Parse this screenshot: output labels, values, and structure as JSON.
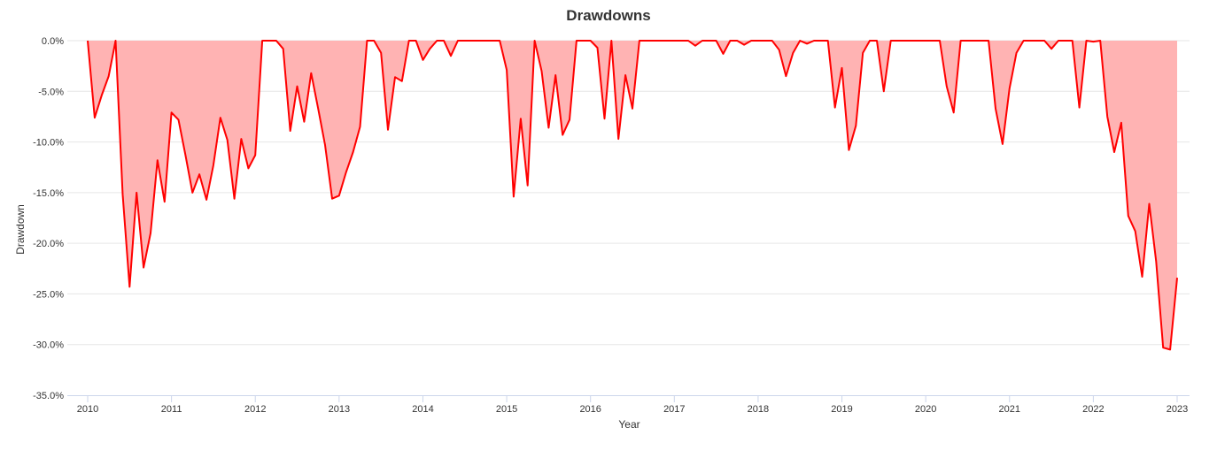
{
  "chart_data": {
    "type": "area",
    "title": "Drawdowns",
    "xlabel": "Year",
    "ylabel": "Drawdown",
    "xlim": [
      2010,
      2023
    ],
    "ylim": [
      -35,
      0
    ],
    "x_ticks": [
      2010,
      2011,
      2012,
      2013,
      2014,
      2015,
      2016,
      2017,
      2018,
      2019,
      2020,
      2021,
      2022,
      2023
    ],
    "x_tick_labels": [
      "2010",
      "2011",
      "2012",
      "2013",
      "2014",
      "2015",
      "2016",
      "2017",
      "2018",
      "2019",
      "2020",
      "2021",
      "2022",
      "2023"
    ],
    "y_ticks": [
      0,
      -5,
      -10,
      -15,
      -20,
      -25,
      -30,
      -35
    ],
    "y_tick_labels": [
      "0.0%",
      "-5.0%",
      "-10.0%",
      "-15.0%",
      "-20.0%",
      "-25.0%",
      "-30.0%",
      "-35.0%"
    ],
    "grid": true,
    "colors": {
      "line": "#ff0000",
      "fill": "#ffb3b3",
      "grid": "#e6e6e6",
      "axis": "#ccd6eb"
    },
    "series": [
      {
        "x": [
          2010.0,
          2010.083,
          2010.167,
          2010.25,
          2010.333,
          2010.417,
          2010.5,
          2010.583,
          2010.667,
          2010.75,
          2010.833,
          2010.917,
          2011.0,
          2011.083,
          2011.167,
          2011.25,
          2011.333,
          2011.417,
          2011.5,
          2011.583,
          2011.667,
          2011.75,
          2011.833,
          2011.917,
          2012.0,
          2012.083,
          2012.167,
          2012.25,
          2012.333,
          2012.417,
          2012.5,
          2012.583,
          2012.667,
          2012.75,
          2012.833,
          2012.917,
          2013.0,
          2013.083,
          2013.167,
          2013.25,
          2013.333,
          2013.417,
          2013.5,
          2013.583,
          2013.667,
          2013.75,
          2013.833,
          2013.917,
          2014.0,
          2014.083,
          2014.167,
          2014.25,
          2014.333,
          2014.417,
          2014.5,
          2014.583,
          2014.667,
          2014.75,
          2014.833,
          2014.917,
          2015.0,
          2015.083,
          2015.167,
          2015.25,
          2015.333,
          2015.417,
          2015.5,
          2015.583,
          2015.667,
          2015.75,
          2015.833,
          2015.917,
          2016.0,
          2016.083,
          2016.167,
          2016.25,
          2016.333,
          2016.417,
          2016.5,
          2016.583,
          2016.667,
          2016.75,
          2016.833,
          2016.917,
          2017.0,
          2017.083,
          2017.167,
          2017.25,
          2017.333,
          2017.417,
          2017.5,
          2017.583,
          2017.667,
          2017.75,
          2017.833,
          2017.917,
          2018.0,
          2018.083,
          2018.167,
          2018.25,
          2018.333,
          2018.417,
          2018.5,
          2018.583,
          2018.667,
          2018.75,
          2018.833,
          2018.917,
          2019.0,
          2019.083,
          2019.167,
          2019.25,
          2019.333,
          2019.417,
          2019.5,
          2019.583,
          2019.667,
          2019.75,
          2019.833,
          2019.917,
          2020.0,
          2020.083,
          2020.167,
          2020.25,
          2020.333,
          2020.417,
          2020.5,
          2020.583,
          2020.667,
          2020.75,
          2020.833,
          2020.917,
          2021.0,
          2021.083,
          2021.167,
          2021.25,
          2021.333,
          2021.417,
          2021.5,
          2021.583,
          2021.667,
          2021.75,
          2021.833,
          2021.917,
          2022.0,
          2022.083,
          2022.167,
          2022.25,
          2022.333,
          2022.417,
          2022.5,
          2022.583,
          2022.667,
          2022.75,
          2022.833,
          2022.917,
          2023.0
        ],
        "y": [
          0.0,
          -7.6,
          -5.4,
          -3.5,
          0.0,
          -15.2,
          -24.3,
          -15.0,
          -22.4,
          -19.0,
          -11.8,
          -15.9,
          -7.1,
          -7.8,
          -11.3,
          -15.0,
          -13.2,
          -15.7,
          -12.3,
          -7.6,
          -9.8,
          -15.6,
          -9.7,
          -12.6,
          -11.3,
          0.0,
          0.0,
          0.0,
          -0.8,
          -8.9,
          -4.5,
          -8.0,
          -3.2,
          -6.7,
          -10.3,
          -15.6,
          -15.3,
          -13.0,
          -11.0,
          -8.5,
          0.0,
          0.0,
          -1.2,
          -8.8,
          -3.6,
          -4.0,
          0.0,
          0.0,
          -1.9,
          -0.8,
          0.0,
          0.0,
          -1.5,
          0.0,
          0.0,
          0.0,
          0.0,
          0.0,
          0.0,
          0.0,
          -2.9,
          -15.4,
          -7.7,
          -14.3,
          0.0,
          -3.0,
          -8.6,
          -3.4,
          -9.3,
          -7.8,
          0.0,
          0.0,
          0.0,
          -0.7,
          -7.7,
          0.0,
          -9.7,
          -3.4,
          -6.7,
          0.0,
          0.0,
          0.0,
          0.0,
          0.0,
          0.0,
          0.0,
          0.0,
          -0.5,
          0.0,
          0.0,
          0.0,
          -1.3,
          0.0,
          0.0,
          -0.4,
          0.0,
          0.0,
          0.0,
          0.0,
          -0.9,
          -3.5,
          -1.2,
          0.0,
          -0.3,
          0.0,
          0.0,
          0.0,
          -6.6,
          -2.7,
          -10.8,
          -8.4,
          -1.2,
          0.0,
          0.0,
          -5.0,
          0.0,
          0.0,
          0.0,
          0.0,
          0.0,
          0.0,
          0.0,
          0.0,
          -4.5,
          -7.1,
          0.0,
          0.0,
          0.0,
          0.0,
          0.0,
          -6.7,
          -10.2,
          -4.7,
          -1.2,
          0.0,
          0.0,
          0.0,
          0.0,
          -0.8,
          0.0,
          0.0,
          0.0,
          -6.6,
          0.0,
          -0.1,
          0.0,
          -7.5,
          -11.0,
          -8.1,
          -17.3,
          -18.8,
          -23.3,
          -16.1,
          -21.8,
          -30.3,
          -30.5,
          -23.4
        ]
      }
    ]
  }
}
